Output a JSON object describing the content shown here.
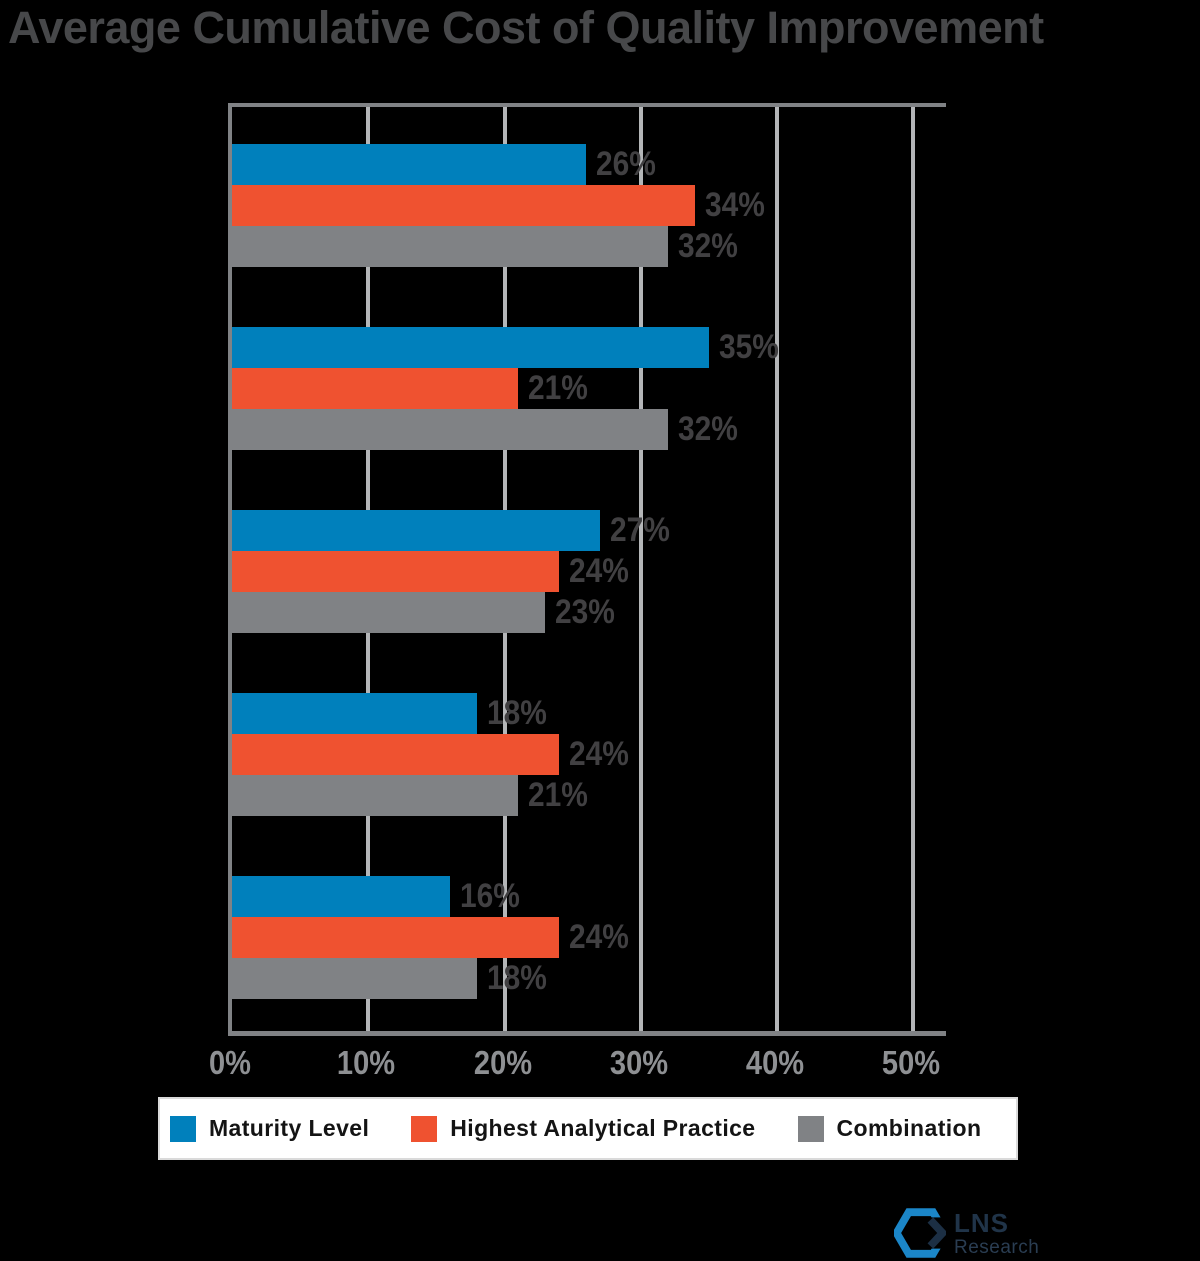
{
  "chart_data": {
    "type": "bar",
    "orientation": "horizontal",
    "title": "Average Cumulative Cost of Quality Improvement",
    "categories": [
      "",
      "",
      "",
      "",
      ""
    ],
    "series": [
      {
        "name": "Maturity Level",
        "color": "#0080BC",
        "values": [
          26,
          35,
          27,
          18,
          16
        ],
        "labels": [
          "26%",
          "35%",
          "27%",
          "18%",
          "16%"
        ]
      },
      {
        "name": "Highest Analytical Practice",
        "color": "#EF5230",
        "values": [
          34,
          21,
          24,
          24,
          24
        ],
        "labels": [
          "34%",
          "21%",
          "24%",
          "24%",
          "24%"
        ]
      },
      {
        "name": "Combination",
        "color": "#808285",
        "values": [
          32,
          32,
          23,
          21,
          18
        ],
        "labels": [
          "32%",
          "32%",
          "23%",
          "21%",
          "18%"
        ]
      }
    ],
    "xlabel": "",
    "ylabel": "",
    "x_ticks": [
      "0%",
      "10%",
      "20%",
      "30%",
      "40%",
      "50%"
    ],
    "x_tick_values": [
      0,
      10,
      20,
      30,
      40,
      50
    ],
    "x_range_percent": [
      0,
      52.4
    ],
    "grid": "vertical",
    "legend_position": "bottom"
  },
  "footer": {
    "brand_name": "LNS",
    "brand_subname": "Research"
  },
  "colors": {
    "background": "#000000",
    "title_text": "#47484A",
    "value_label_text": "#414042",
    "tick_label_text": "#8E9093",
    "gridline": "#B4B6B8",
    "axis_border": "#808285",
    "legend_background": "#FFFFFF",
    "legend_text": "#141414",
    "logo_blue": "#1B86C8",
    "logo_navy": "#203449"
  }
}
